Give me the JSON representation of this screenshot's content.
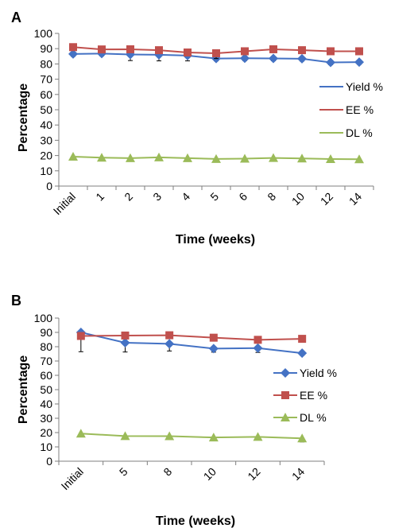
{
  "colors": {
    "yield": "#4472C4",
    "ee": "#C0504D",
    "dl": "#9BBB59",
    "axis": "#7f7f7f",
    "errorbar": "#000000"
  },
  "chart_data": [
    {
      "panel": "A",
      "type": "line",
      "xlabel": "Time (weeks)",
      "ylabel": "Percentage",
      "ylim": [
        0,
        100
      ],
      "yticks": [
        0,
        10,
        20,
        30,
        40,
        50,
        60,
        70,
        80,
        90,
        100
      ],
      "categories": [
        "Initial",
        "1",
        "2",
        "3",
        "4",
        "5",
        "6",
        "8",
        "10",
        "12",
        "14"
      ],
      "legend_position": "right",
      "series": [
        {
          "name": "Yield %",
          "key": "yield",
          "marker": "diamond",
          "values": [
            86.5,
            86.8,
            86.2,
            86.0,
            85.5,
            83.5,
            83.7,
            83.6,
            83.4,
            81.0,
            81.2
          ],
          "errors": [
            1.5,
            1.5,
            4.0,
            4.0,
            3.5,
            1.5,
            1.5,
            1.5,
            1.5,
            1.5,
            1.5
          ]
        },
        {
          "name": "EE %",
          "key": "ee",
          "marker": "square",
          "values": [
            91.0,
            89.5,
            89.6,
            89.0,
            87.5,
            87.0,
            88.3,
            89.6,
            89.0,
            88.3,
            88.3
          ],
          "errors": [
            1.5,
            1.5,
            1.5,
            1.5,
            1.5,
            3.5,
            1.5,
            1.5,
            1.5,
            1.5,
            1.5
          ]
        },
        {
          "name": "DL %",
          "key": "dl",
          "marker": "triangle",
          "values": [
            19.3,
            18.6,
            18.3,
            18.8,
            18.3,
            17.8,
            18.0,
            18.4,
            18.1,
            17.7,
            17.6
          ],
          "errors": [
            1.0,
            1.0,
            1.0,
            1.0,
            1.0,
            1.0,
            1.0,
            1.0,
            1.0,
            1.0,
            1.0
          ]
        }
      ]
    },
    {
      "panel": "B",
      "type": "line",
      "xlabel": "Time (weeks)",
      "ylabel": "Percentage",
      "ylim": [
        0,
        100
      ],
      "yticks": [
        0,
        10,
        20,
        30,
        40,
        50,
        60,
        70,
        80,
        90,
        100
      ],
      "categories": [
        "Initial",
        "5",
        "8",
        "10",
        "12",
        "14"
      ],
      "legend_position": "right",
      "series": [
        {
          "name": "Yield %",
          "key": "yield",
          "marker": "diamond",
          "values": [
            90.0,
            82.8,
            82.0,
            78.7,
            79.0,
            75.5
          ],
          "errors": [
            1.5,
            6.5,
            5.0,
            2.5,
            3.0,
            1.5
          ]
        },
        {
          "name": "EE %",
          "key": "ee",
          "marker": "square",
          "values": [
            87.5,
            87.8,
            88.0,
            86.3,
            84.8,
            85.5
          ],
          "errors": [
            11.0,
            1.5,
            1.5,
            1.5,
            1.5,
            1.5
          ]
        },
        {
          "name": "DL %",
          "key": "dl",
          "marker": "triangle",
          "values": [
            19.3,
            17.6,
            17.5,
            16.6,
            17.0,
            16.0
          ],
          "errors": [
            2.0,
            1.0,
            1.0,
            2.0,
            1.5,
            2.5
          ]
        }
      ]
    }
  ]
}
